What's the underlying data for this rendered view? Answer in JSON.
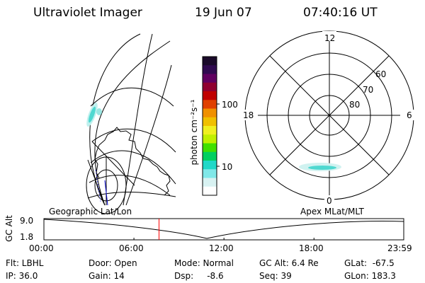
{
  "header": {
    "title": "Ultraviolet Imager",
    "date": "19 Jun 07",
    "time": "07:40:16 UT"
  },
  "colorbar": {
    "label": "photon cm⁻²s⁻¹",
    "ticks": [
      "100",
      "10"
    ],
    "colors": [
      "#1a0a2a",
      "#300a50",
      "#600060",
      "#900030",
      "#c00000",
      "#e04000",
      "#f09000",
      "#f0c000",
      "#f0f020",
      "#c0f000",
      "#40e000",
      "#00d060",
      "#20d8c8",
      "#80e8e8",
      "#d8f2f2",
      "#ffffff"
    ]
  },
  "polar": {
    "mlt_labels": [
      "12",
      "18",
      "6",
      "0"
    ],
    "lat_labels": [
      "60",
      "70",
      "80"
    ]
  },
  "timeline": {
    "y_axis_label": "GC Alt",
    "y_ticks": [
      "9.0",
      "1.8"
    ],
    "left_label": "Geographic Lat/Lon",
    "right_label": "Apex  MLat/MLT",
    "x_ticks": [
      "00:00",
      "06:00",
      "12:00",
      "18:00",
      "23:59"
    ],
    "marker_time": "07:40:16"
  },
  "info": {
    "flt": "Flt: LBHL",
    "ip": "IP: 36.0",
    "door": "Door: Open",
    "gain": "Gain: 14",
    "mode": "Mode: Normal",
    "dsp": "Dsp:     -8.6",
    "gc_alt": "GC Alt: 6.4 Re",
    "seq": "Seq: 39",
    "glat": "GLat:  -67.5",
    "glon": "GLon: 183.3"
  }
}
